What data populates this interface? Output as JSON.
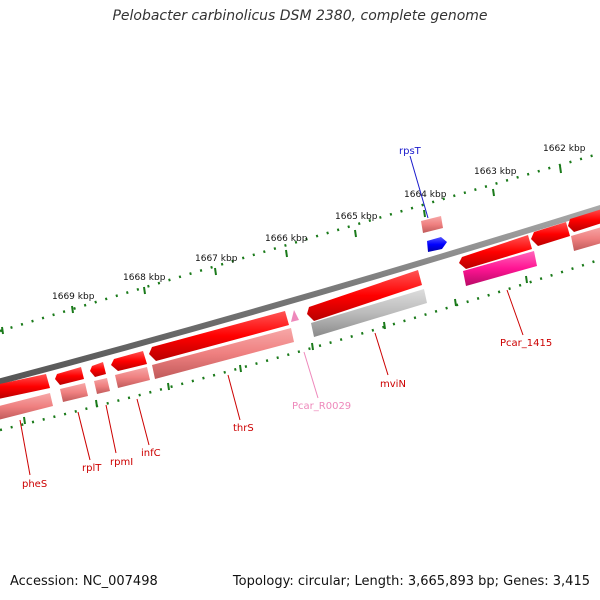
{
  "title": "Pelobacter carbinolicus DSM 2380, complete genome",
  "footer": {
    "accession": "Accession: NC_007498",
    "stats": "Topology: circular; Length: 3,665,893 bp; Genes: 3,415"
  },
  "ruler": {
    "kbp_labels": [
      "1669 kbp",
      "1668 kbp",
      "1667 kbp",
      "1666 kbp",
      "1665 kbp",
      "1664 kbp",
      "1663 kbp",
      "1662 kbp"
    ]
  },
  "genes": [
    {
      "name": "pheS",
      "color": "#cc0000"
    },
    {
      "name": "rplT",
      "color": "#cc0000"
    },
    {
      "name": "rpmI",
      "color": "#cc0000"
    },
    {
      "name": "infC",
      "color": "#cc0000"
    },
    {
      "name": "thrS",
      "color": "#cc0000"
    },
    {
      "name": "Pcar_R0029",
      "color": "#ee88bb"
    },
    {
      "name": "mviN",
      "color": "#cc0000"
    },
    {
      "name": "rpsT",
      "color": "#1a1acc"
    },
    {
      "name": "Pcar_1415",
      "color": "#cc0000"
    }
  ],
  "colors": {
    "gene_red": "#ff0000",
    "gene_pink": "#f08080",
    "gene_grey": "#b0b0b0",
    "gene_magenta": "#ff1493",
    "gene_blue": "#0000ff",
    "backbone": "#777777",
    "ruler": "#1a7a1a"
  }
}
